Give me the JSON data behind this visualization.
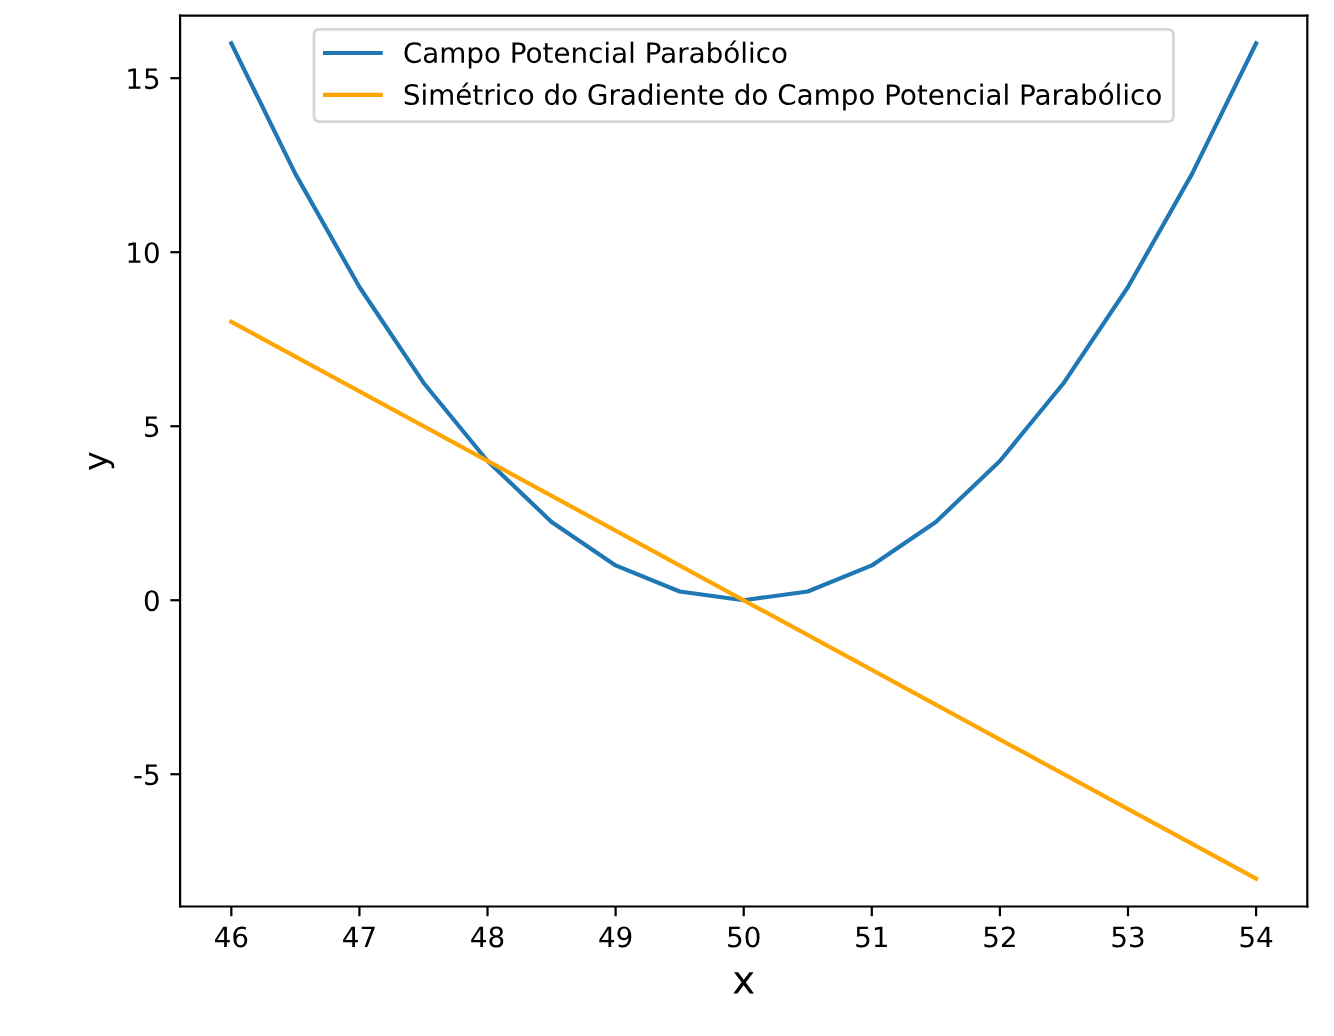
{
  "chart_data": {
    "type": "line",
    "xlabel": "x",
    "ylabel": "y",
    "xlim": [
      45.6,
      54.4
    ],
    "ylim": [
      -8.8,
      16.8
    ],
    "xticks": [
      46,
      47,
      48,
      49,
      50,
      51,
      52,
      53,
      54
    ],
    "yticks": [
      -5,
      0,
      5,
      10,
      15
    ],
    "grid": false,
    "legend": "top",
    "series": [
      {
        "name": "Campo Potencial Parabólico",
        "color": "#1f77b4",
        "x": [
          46,
          46.5,
          47,
          47.5,
          48,
          48.5,
          49,
          49.5,
          50,
          50.5,
          51,
          51.5,
          52,
          52.5,
          53,
          53.5,
          54
        ],
        "values": [
          16,
          12.25,
          9,
          6.25,
          4,
          2.25,
          1,
          0.25,
          0,
          0.25,
          1,
          2.25,
          4,
          6.25,
          9,
          12.25,
          16
        ]
      },
      {
        "name": "Simétrico do Gradiente do Campo Potencial Parabólico",
        "color": "#ffa500",
        "x": [
          46,
          54
        ],
        "values": [
          8,
          -8
        ]
      }
    ]
  }
}
